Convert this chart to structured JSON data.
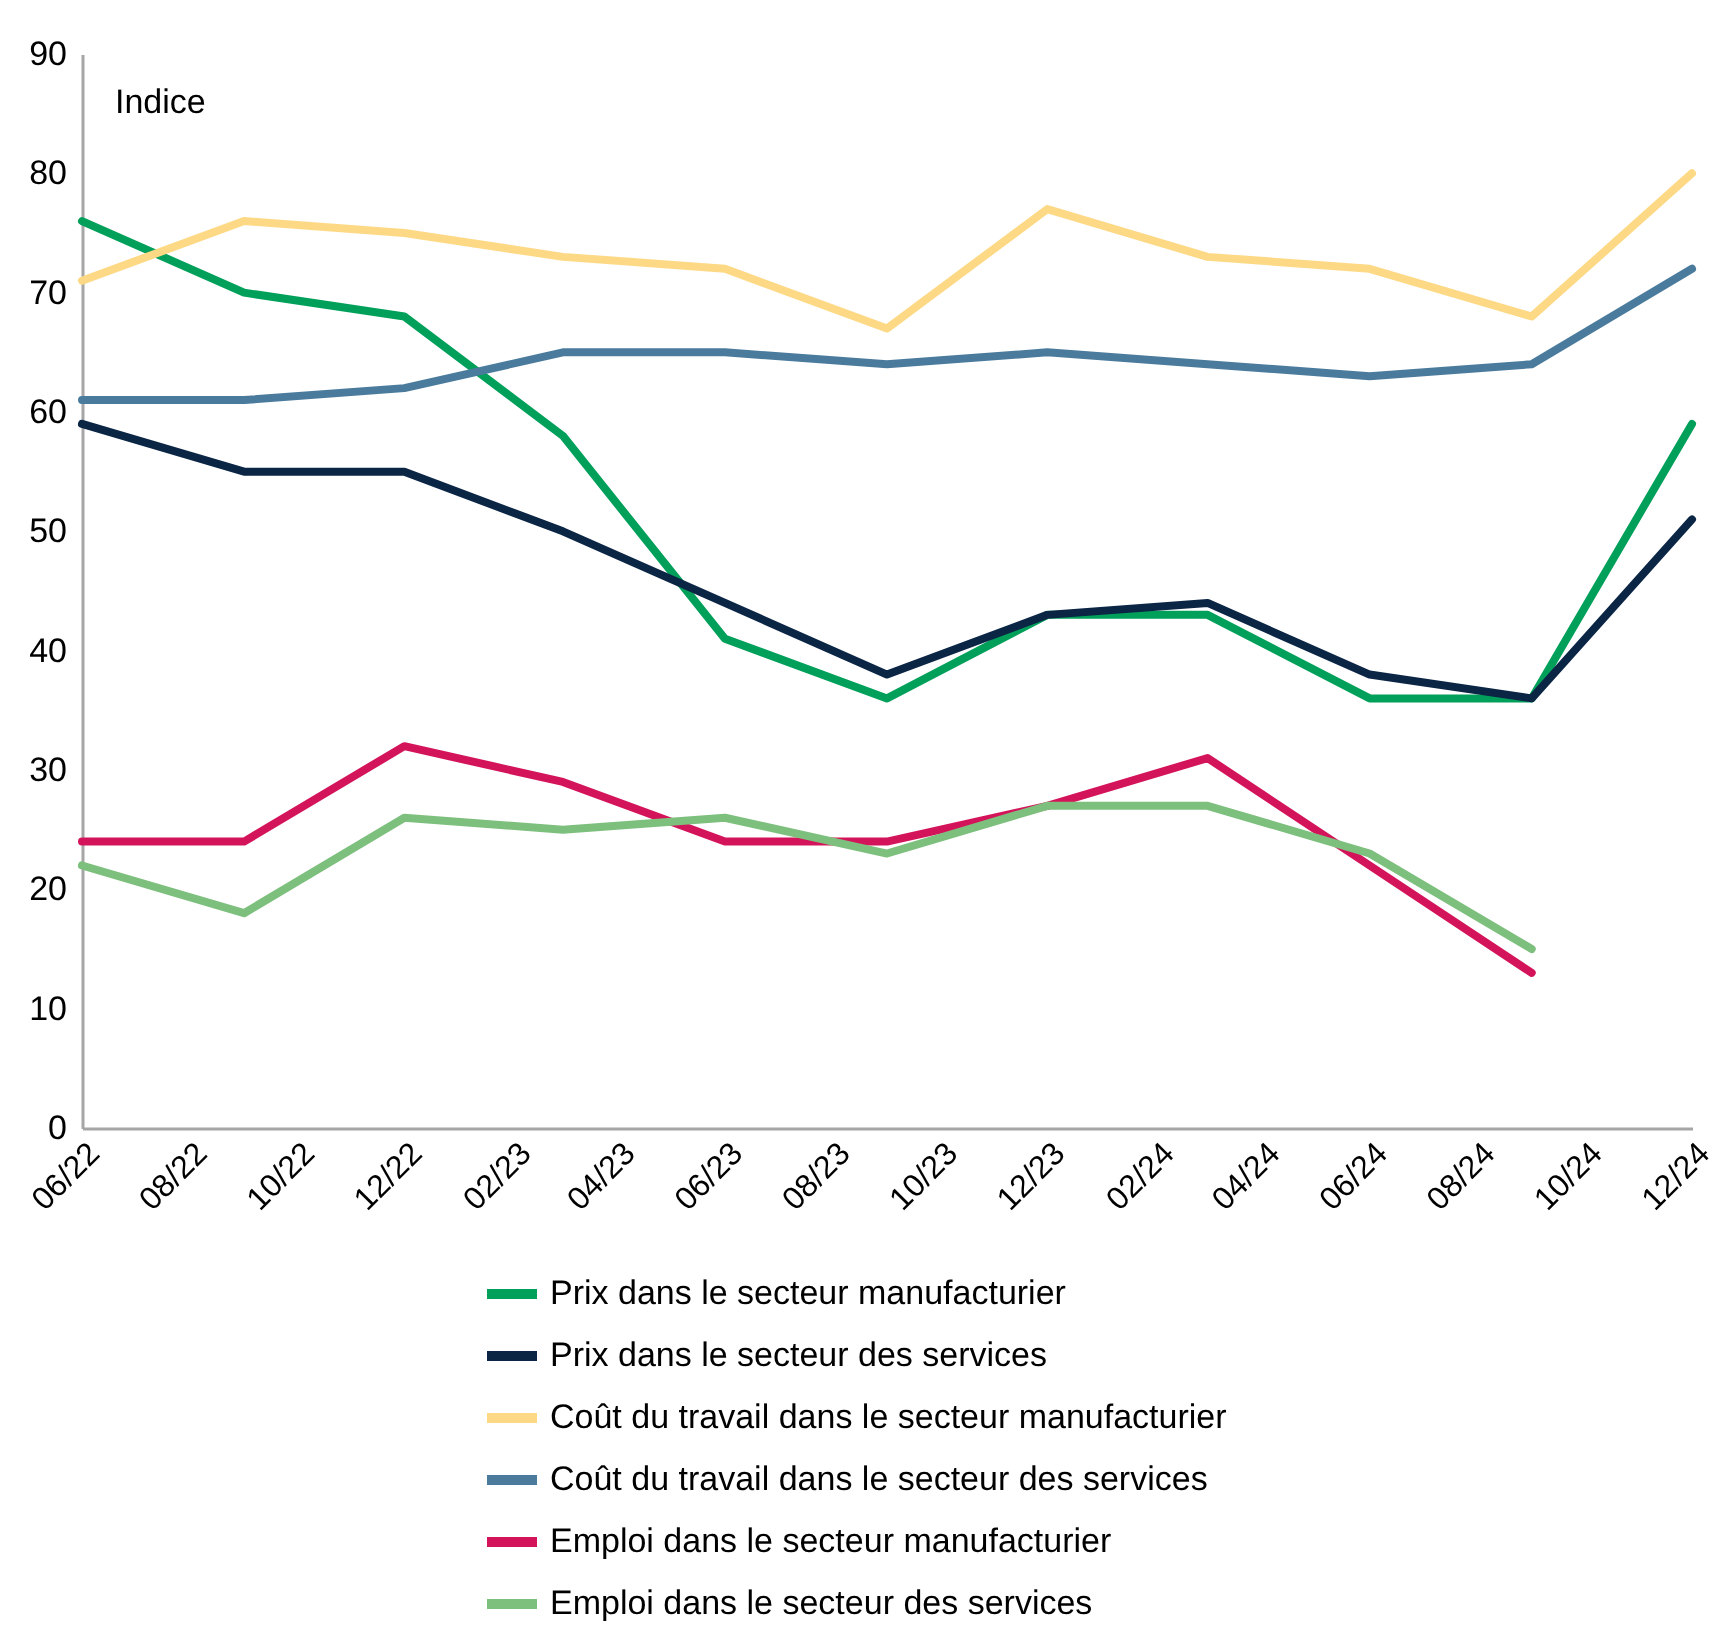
{
  "chart_data": {
    "type": "line",
    "ylabel": "Indice",
    "x": [
      "2022-06",
      "2022-09",
      "2022-12",
      "2023-03",
      "2023-06",
      "2023-09",
      "2023-12",
      "2024-03",
      "2024-06",
      "2024-09",
      "2024-12"
    ],
    "xlim": [
      "2022-06",
      "2024-12"
    ],
    "xticks": [
      {
        "value": "2022-06",
        "label": "06/22"
      },
      {
        "value": "2022-08",
        "label": "08/22"
      },
      {
        "value": "2022-10",
        "label": "10/22"
      },
      {
        "value": "2022-12",
        "label": "12/22"
      },
      {
        "value": "2023-02",
        "label": "02/23"
      },
      {
        "value": "2023-04",
        "label": "04/23"
      },
      {
        "value": "2023-06",
        "label": "06/23"
      },
      {
        "value": "2023-08",
        "label": "08/23"
      },
      {
        "value": "2023-10",
        "label": "10/23"
      },
      {
        "value": "2023-12",
        "label": "12/23"
      },
      {
        "value": "2024-02",
        "label": "02/24"
      },
      {
        "value": "2024-04",
        "label": "04/24"
      },
      {
        "value": "2024-06",
        "label": "06/24"
      },
      {
        "value": "2024-08",
        "label": "08/24"
      },
      {
        "value": "2024-10",
        "label": "10/24"
      },
      {
        "value": "2024-12",
        "label": "12/24"
      }
    ],
    "ylim": [
      0,
      90
    ],
    "yticks": [
      0,
      10,
      20,
      30,
      40,
      50,
      60,
      70,
      80,
      90
    ],
    "grid": false,
    "legend": "bottom",
    "line_style": "solid",
    "marker": "none",
    "series": [
      {
        "name": "Prix dans le secteur manufacturier",
        "color": "#00a05a",
        "values": [
          76,
          70,
          68,
          58,
          41,
          36,
          43,
          43,
          36,
          36,
          59
        ]
      },
      {
        "name": "Prix dans le secteur des services",
        "color": "#0b2545",
        "values": [
          59,
          55,
          55,
          50,
          44,
          38,
          43,
          44,
          38,
          36,
          51
        ]
      },
      {
        "name": "Coût du travail dans le secteur manufacturier",
        "color": "#fdd985",
        "values": [
          71,
          76,
          75,
          73,
          72,
          67,
          77,
          73,
          72,
          68,
          80
        ]
      },
      {
        "name": "Coût du travail dans le secteur des services",
        "color": "#4a7b9d",
        "values": [
          61,
          61,
          62,
          65,
          65,
          64,
          65,
          64,
          63,
          64,
          72
        ]
      },
      {
        "name": "Emploi dans le secteur manufacturier",
        "color": "#d4145a",
        "values": [
          24,
          24,
          32,
          29,
          24,
          24,
          27,
          31,
          22,
          13,
          null
        ]
      },
      {
        "name": "Emploi dans le secteur des services",
        "color": "#7dbf7d",
        "values": [
          22,
          18,
          26,
          25,
          26,
          23,
          27,
          27,
          23,
          15,
          null
        ]
      }
    ]
  }
}
